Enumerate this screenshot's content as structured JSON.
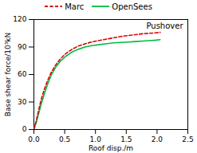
{
  "chart_data": {
    "type": "line",
    "title": "Pushover",
    "xlabel": "Roof disp./m",
    "ylabel": "Base shear force/10³kN",
    "xlim": [
      0,
      2.5
    ],
    "ylim": [
      0,
      120
    ],
    "xticks": [
      {
        "value": 0,
        "label": "0.0"
      },
      0.5,
      {
        "value": 1.0,
        "label": "1.0"
      },
      1.5,
      {
        "value": 2.0,
        "label": "2.0"
      },
      2.5
    ],
    "yticks": [
      0,
      30,
      60,
      90,
      120
    ],
    "grid": false,
    "legend": "top",
    "x": [
      0.0,
      0.04,
      0.08,
      0.12,
      0.17,
      0.22,
      0.28,
      0.35,
      0.43,
      0.52,
      0.62,
      0.72,
      0.83,
      0.94,
      1.05,
      1.17,
      1.29,
      1.41,
      1.53,
      1.65,
      1.77,
      1.88,
      1.98,
      2.05
    ],
    "series": [
      {
        "name": "Marc",
        "color": "#dd0000",
        "line_style": "dashed",
        "values": [
          0.0,
          10.0,
          22.0,
          33.0,
          44.0,
          53.0,
          62.0,
          70.0,
          77.0,
          83.0,
          87.5,
          91.0,
          93.5,
          95.5,
          97.0,
          98.5,
          100.0,
          101.5,
          102.5,
          103.5,
          104.5,
          105.0,
          105.5,
          106.0
        ]
      },
      {
        "name": "OpenSees",
        "color": "#00bb44",
        "line_style": "solid",
        "values": [
          0.0,
          8.0,
          18.0,
          28.0,
          39.0,
          49.0,
          59.0,
          67.5,
          74.5,
          80.0,
          84.5,
          87.5,
          90.0,
          91.5,
          92.5,
          93.5,
          94.5,
          95.0,
          95.5,
          96.0,
          96.5,
          97.0,
          97.5,
          98.0
        ]
      }
    ]
  }
}
